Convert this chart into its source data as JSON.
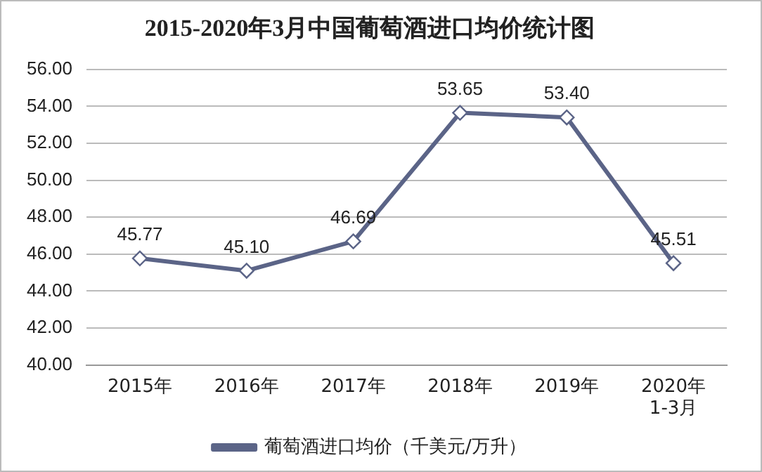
{
  "chart_data": {
    "type": "line",
    "title": "2015-2020年3月中国葡萄酒进口均价统计图",
    "categories": [
      "2015年",
      "2016年",
      "2017年",
      "2018年",
      "2019年",
      "2020年\n1-3月"
    ],
    "series": [
      {
        "name": "葡萄酒进口均价（千美元/万升）",
        "color": "#5b6487",
        "values": [
          45.77,
          45.1,
          46.69,
          53.65,
          53.4,
          45.51
        ],
        "value_labels": [
          "45.77",
          "45.10",
          "46.69",
          "53.65",
          "53.40",
          "45.51"
        ]
      }
    ],
    "ylim": [
      40,
      56
    ],
    "yticks": [
      {
        "value": 40,
        "label": "40.00"
      },
      {
        "value": 42,
        "label": "42.00"
      },
      {
        "value": 44,
        "label": "44.00"
      },
      {
        "value": 46,
        "label": "46.00"
      },
      {
        "value": 48,
        "label": "48.00"
      },
      {
        "value": 50,
        "label": "50.00"
      },
      {
        "value": 52,
        "label": "52.00"
      },
      {
        "value": 54,
        "label": "54.00"
      },
      {
        "value": 56,
        "label": "56.00"
      }
    ],
    "grid": "y",
    "legend": "bottom",
    "marker": "diamond",
    "line_style": "solid"
  }
}
